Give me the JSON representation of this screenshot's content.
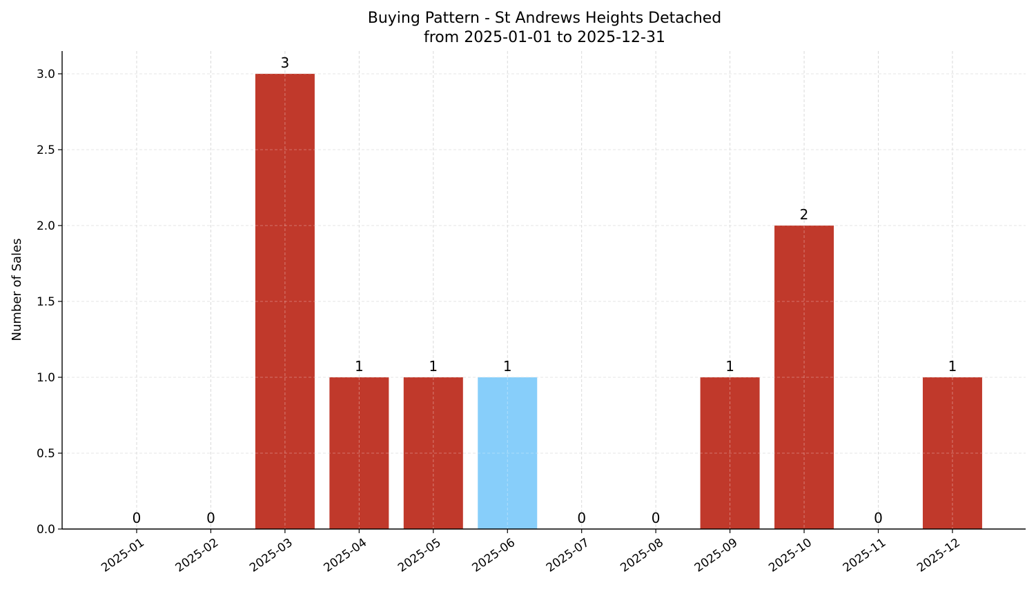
{
  "chart_data": {
    "type": "bar",
    "title": "Buying Pattern - St Andrews Heights Detached",
    "subtitle": "from 2025-01-01 to 2025-12-31",
    "xlabel": "",
    "ylabel": "Number of Sales",
    "categories": [
      "2025-01",
      "2025-02",
      "2025-03",
      "2025-04",
      "2025-05",
      "2025-06",
      "2025-07",
      "2025-08",
      "2025-09",
      "2025-10",
      "2025-11",
      "2025-12"
    ],
    "values": [
      0,
      0,
      3,
      1,
      1,
      1,
      0,
      0,
      1,
      2,
      0,
      1
    ],
    "highlight_index": 5,
    "colors": {
      "bar": "#c0392b",
      "highlight": "#87cefa",
      "grid": "#d9d9d9"
    },
    "ylim": [
      0,
      3.15
    ],
    "yticks": [
      "0.0",
      "0.5",
      "1.0",
      "1.5",
      "2.0",
      "2.5",
      "3.0"
    ],
    "grid": true,
    "grid_style": "dashed",
    "data_labels": true,
    "legend": "none"
  }
}
